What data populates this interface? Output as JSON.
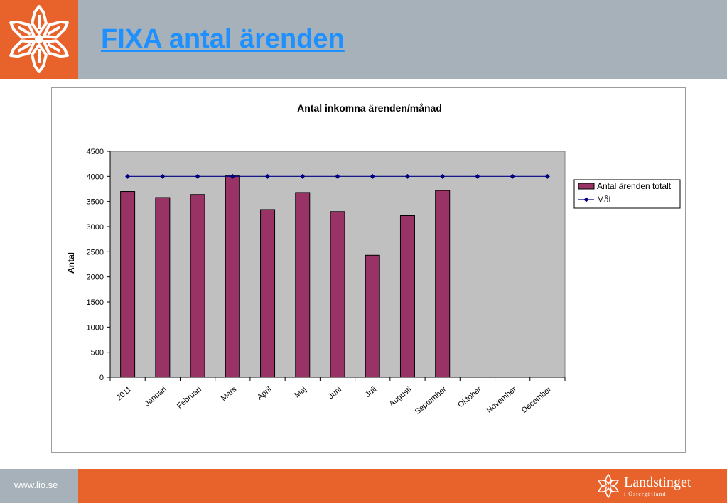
{
  "page": {
    "title": "FIXA antal ärenden",
    "footer_url": "www.lio.se",
    "brand_name": "Landstinget",
    "brand_sub": "i Östergötland"
  },
  "colors": {
    "header_bg": "#a7b1b9",
    "accent_orange": "#e8632b",
    "title_blue": "#1e90ff",
    "bar_fill": "#993366",
    "line_color": "#000080",
    "plot_bg": "#c0c0c0"
  },
  "icons": {
    "logo": "snowflake-flower-icon",
    "brand": "snowflake-flower-icon"
  },
  "chart_data": {
    "type": "bar",
    "title": "Antal inkomna ärenden/månad",
    "xlabel": "",
    "ylabel": "Antal",
    "categories": [
      "2011",
      "Januari",
      "Februari",
      "Mars",
      "April",
      "Maj",
      "Juni",
      "Juli",
      "Augusti",
      "September",
      "Oktober",
      "November",
      "December"
    ],
    "series": [
      {
        "name": "Antal ärenden totalt",
        "type": "bar",
        "values": [
          3700,
          3580,
          3640,
          4010,
          3340,
          3680,
          3300,
          2430,
          3220,
          3720,
          null,
          null,
          null
        ]
      },
      {
        "name": "Mål",
        "type": "line",
        "values": [
          4000,
          4000,
          4000,
          4000,
          4000,
          4000,
          4000,
          4000,
          4000,
          4000,
          4000,
          4000,
          4000
        ]
      }
    ],
    "ylim": [
      0,
      4500
    ],
    "yticks": [
      "0",
      "500",
      "1000",
      "1500",
      "2000",
      "2500",
      "3000",
      "3500",
      "4000",
      "4500"
    ],
    "legend": "right"
  }
}
